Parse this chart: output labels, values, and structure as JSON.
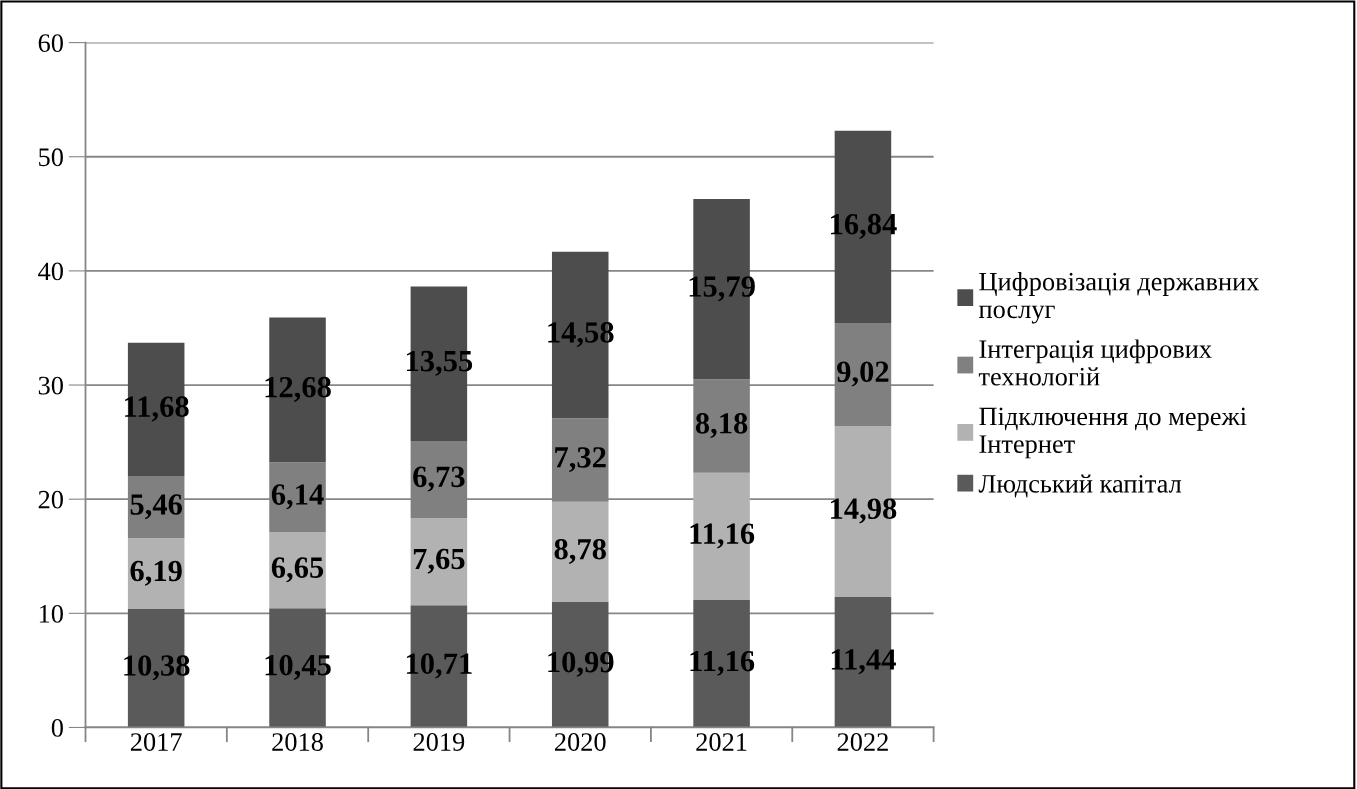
{
  "chart_data": {
    "type": "bar",
    "stacked": true,
    "categories": [
      "2017",
      "2018",
      "2019",
      "2020",
      "2021",
      "2022"
    ],
    "series": [
      {
        "name": "Людський капітал",
        "color": "#5a5a5a",
        "values": [
          10.38,
          10.45,
          10.71,
          10.99,
          11.16,
          11.44
        ],
        "value_labels": [
          "10,38",
          "10,45",
          "10,71",
          "10,99",
          "11,16",
          "11,44"
        ]
      },
      {
        "name": "Підключення до мережі Інтернет",
        "color": "#b2b2b2",
        "values": [
          6.19,
          6.65,
          7.65,
          8.78,
          11.16,
          14.98
        ],
        "value_labels": [
          "6,19",
          "6,65",
          "7,65",
          "8,78",
          "11,16",
          "14,98"
        ]
      },
      {
        "name": "Інтеграція цифрових технологій",
        "color": "#808080",
        "values": [
          5.46,
          6.14,
          6.73,
          7.32,
          8.18,
          9.02
        ],
        "value_labels": [
          "5,46",
          "6,14",
          "6,73",
          "7,32",
          "8,18",
          "9,02"
        ]
      },
      {
        "name": "Цифровізація державних послуг",
        "color": "#4d4d4d",
        "values": [
          11.68,
          12.68,
          13.55,
          14.58,
          15.79,
          16.84
        ],
        "value_labels": [
          "11,68",
          "12,68",
          "13,55",
          "14,58",
          "15,79",
          "16,84"
        ]
      }
    ],
    "ylim": [
      0,
      60
    ],
    "yticks": [
      0,
      10,
      20,
      30,
      40,
      50,
      60
    ],
    "grid": "y",
    "legend": "right"
  }
}
